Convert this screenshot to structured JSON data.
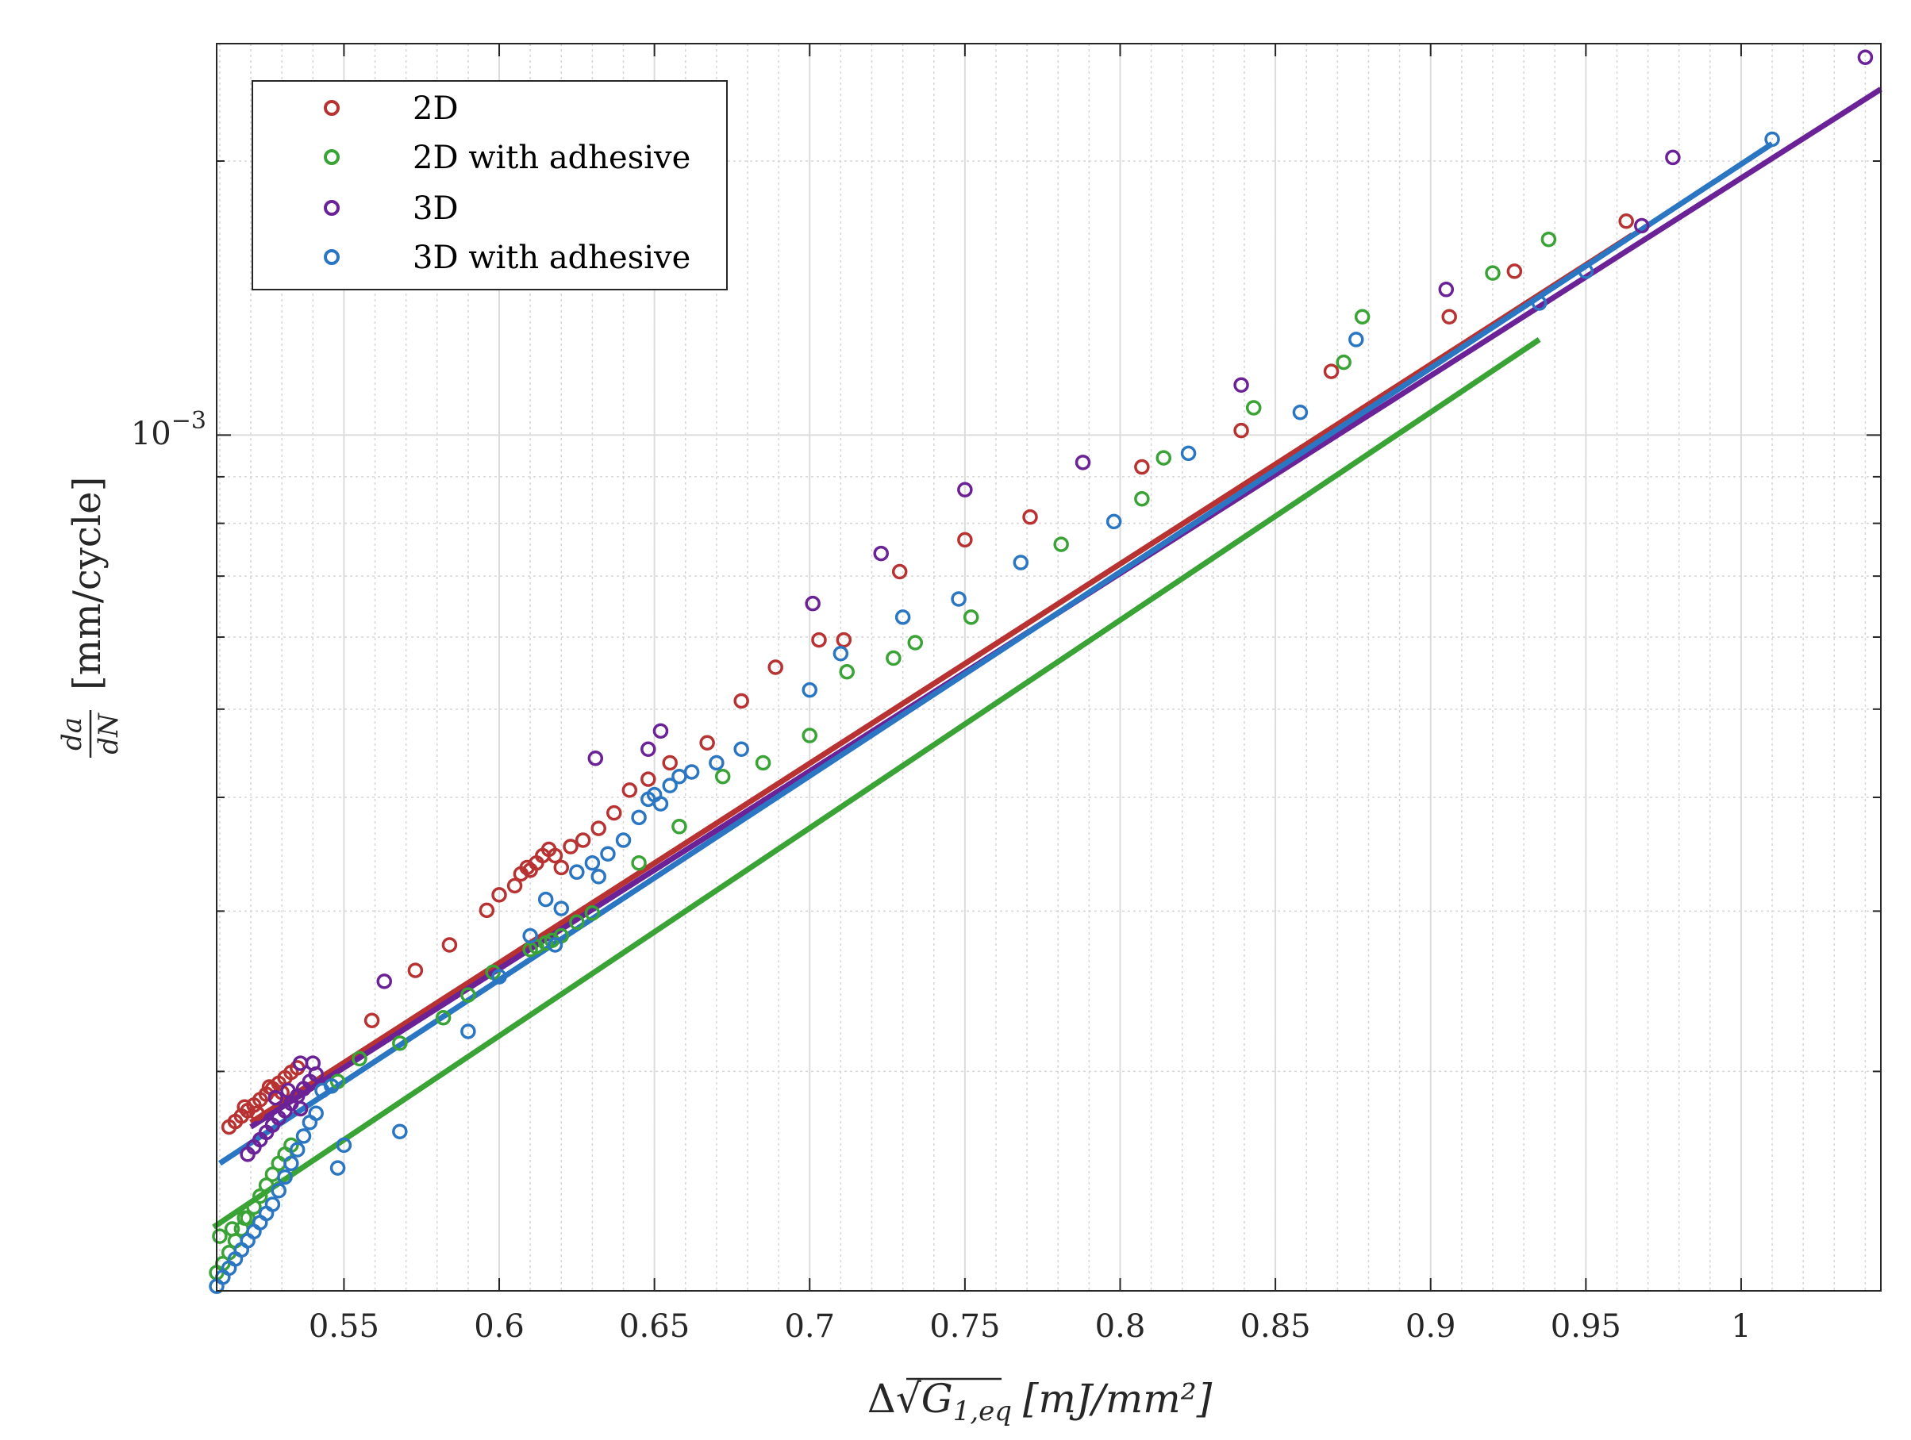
{
  "chart_data": {
    "type": "scatter",
    "title": "",
    "xlabel_parts": {
      "delta": "Δ",
      "sqrt": "√",
      "var": "G",
      "sub": "1,eq",
      "units": "[mJ/mm²]"
    },
    "ylabel_parts": {
      "num": "da",
      "den": "dN",
      "units": "[mm/cycle]"
    },
    "xlim": [
      0.509,
      1.045
    ],
    "ylim_log10": [
      -3.94,
      -2.57
    ],
    "x_ticks": [
      0.55,
      0.6,
      0.65,
      0.7,
      0.75,
      0.8,
      0.85,
      0.9,
      0.95,
      1.0
    ],
    "x_tick_labels": [
      "0.55",
      "0.6",
      "0.65",
      "0.7",
      "0.75",
      "0.8",
      "0.85",
      "0.9",
      "0.95",
      "1"
    ],
    "y_tick_label": {
      "base": "10",
      "exp": "−3"
    },
    "grid": "on (major and minor)",
    "legend_position": "top-left",
    "series": [
      {
        "name": "2D",
        "color": "#b83232",
        "fit_x": [
          0.52,
          0.965
        ],
        "fit_log10": [
          -3.755,
          -2.78
        ],
        "points": [
          [
            0.513,
            -3.76
          ],
          [
            0.515,
            -3.754
          ],
          [
            0.517,
            -3.748
          ],
          [
            0.519,
            -3.742
          ],
          [
            0.521,
            -3.736
          ],
          [
            0.523,
            -3.73
          ],
          [
            0.525,
            -3.724
          ],
          [
            0.527,
            -3.718
          ],
          [
            0.529,
            -3.712
          ],
          [
            0.531,
            -3.706
          ],
          [
            0.533,
            -3.7
          ],
          [
            0.535,
            -3.695
          ],
          [
            0.518,
            -3.738
          ],
          [
            0.522,
            -3.745
          ],
          [
            0.526,
            -3.716
          ],
          [
            0.53,
            -3.722
          ],
          [
            0.559,
            -3.643
          ],
          [
            0.573,
            -3.588
          ],
          [
            0.584,
            -3.56
          ],
          [
            0.596,
            -3.522
          ],
          [
            0.6,
            -3.505
          ],
          [
            0.605,
            -3.495
          ],
          [
            0.607,
            -3.482
          ],
          [
            0.609,
            -3.475
          ],
          [
            0.61,
            -3.478
          ],
          [
            0.612,
            -3.47
          ],
          [
            0.614,
            -3.462
          ],
          [
            0.616,
            -3.455
          ],
          [
            0.618,
            -3.462
          ],
          [
            0.62,
            -3.475
          ],
          [
            0.623,
            -3.452
          ],
          [
            0.627,
            -3.445
          ],
          [
            0.632,
            -3.432
          ],
          [
            0.637,
            -3.415
          ],
          [
            0.642,
            -3.39
          ],
          [
            0.648,
            -3.378
          ],
          [
            0.655,
            -3.36
          ],
          [
            0.667,
            -3.338
          ],
          [
            0.678,
            -3.292
          ],
          [
            0.689,
            -3.255
          ],
          [
            0.703,
            -3.225
          ],
          [
            0.711,
            -3.225
          ],
          [
            0.729,
            -3.15
          ],
          [
            0.75,
            -3.115
          ],
          [
            0.771,
            -3.09
          ],
          [
            0.807,
            -3.035
          ],
          [
            0.839,
            -2.995
          ],
          [
            0.868,
            -2.93
          ],
          [
            0.906,
            -2.87
          ],
          [
            0.927,
            -2.82
          ],
          [
            0.963,
            -2.765
          ]
        ]
      },
      {
        "name": "2D with adhesive",
        "color": "#3aa335",
        "fit_x": [
          0.508,
          0.935
        ],
        "fit_log10": [
          -3.87,
          -2.895
        ],
        "points": [
          [
            0.509,
            -3.92
          ],
          [
            0.511,
            -3.91
          ],
          [
            0.513,
            -3.898
          ],
          [
            0.515,
            -3.885
          ],
          [
            0.517,
            -3.872
          ],
          [
            0.519,
            -3.86
          ],
          [
            0.521,
            -3.848
          ],
          [
            0.523,
            -3.836
          ],
          [
            0.525,
            -3.824
          ],
          [
            0.527,
            -3.812
          ],
          [
            0.529,
            -3.8
          ],
          [
            0.531,
            -3.79
          ],
          [
            0.533,
            -3.78
          ],
          [
            0.51,
            -3.88
          ],
          [
            0.514,
            -3.872
          ],
          [
            0.518,
            -3.86
          ],
          [
            0.548,
            -3.71
          ],
          [
            0.555,
            -3.685
          ],
          [
            0.568,
            -3.668
          ],
          [
            0.582,
            -3.64
          ],
          [
            0.59,
            -3.615
          ],
          [
            0.598,
            -3.59
          ],
          [
            0.61,
            -3.565
          ],
          [
            0.612,
            -3.562
          ],
          [
            0.615,
            -3.558
          ],
          [
            0.617,
            -3.555
          ],
          [
            0.62,
            -3.55
          ],
          [
            0.625,
            -3.535
          ],
          [
            0.63,
            -3.525
          ],
          [
            0.645,
            -3.47
          ],
          [
            0.658,
            -3.43
          ],
          [
            0.672,
            -3.375
          ],
          [
            0.685,
            -3.36
          ],
          [
            0.7,
            -3.33
          ],
          [
            0.712,
            -3.26
          ],
          [
            0.727,
            -3.245
          ],
          [
            0.734,
            -3.228
          ],
          [
            0.752,
            -3.2
          ],
          [
            0.781,
            -3.12
          ],
          [
            0.807,
            -3.07
          ],
          [
            0.814,
            -3.025
          ],
          [
            0.843,
            -2.97
          ],
          [
            0.872,
            -2.92
          ],
          [
            0.878,
            -2.87
          ],
          [
            0.92,
            -2.822
          ],
          [
            0.938,
            -2.785
          ]
        ]
      },
      {
        "name": "3D",
        "color": "#6a2296",
        "fit_x": [
          0.52,
          1.045
        ],
        "fit_log10": [
          -3.76,
          -2.62
        ],
        "points": [
          [
            0.519,
            -3.79
          ],
          [
            0.521,
            -3.782
          ],
          [
            0.523,
            -3.774
          ],
          [
            0.525,
            -3.766
          ],
          [
            0.527,
            -3.758
          ],
          [
            0.529,
            -3.75
          ],
          [
            0.531,
            -3.742
          ],
          [
            0.533,
            -3.734
          ],
          [
            0.535,
            -3.726
          ],
          [
            0.537,
            -3.718
          ],
          [
            0.539,
            -3.71
          ],
          [
            0.541,
            -3.702
          ],
          [
            0.536,
            -3.74
          ],
          [
            0.532,
            -3.72
          ],
          [
            0.528,
            -3.728
          ],
          [
            0.54,
            -3.69
          ],
          [
            0.536,
            -3.69
          ],
          [
            0.563,
            -3.6
          ],
          [
            0.631,
            -3.355
          ],
          [
            0.648,
            -3.345
          ],
          [
            0.652,
            -3.325
          ],
          [
            0.701,
            -3.185
          ],
          [
            0.723,
            -3.13
          ],
          [
            0.75,
            -3.06
          ],
          [
            0.788,
            -3.03
          ],
          [
            0.839,
            -2.945
          ],
          [
            0.905,
            -2.84
          ],
          [
            0.968,
            -2.77
          ],
          [
            0.978,
            -2.695
          ],
          [
            1.04,
            -2.585
          ]
        ]
      },
      {
        "name": "3D with adhesive",
        "color": "#2b76c3",
        "fit_x": [
          0.51,
          1.01
        ],
        "fit_log10": [
          -3.8,
          -2.68
        ],
        "points": [
          [
            0.509,
            -3.935
          ],
          [
            0.511,
            -3.925
          ],
          [
            0.513,
            -3.915
          ],
          [
            0.515,
            -3.905
          ],
          [
            0.517,
            -3.895
          ],
          [
            0.519,
            -3.885
          ],
          [
            0.521,
            -3.875
          ],
          [
            0.523,
            -3.865
          ],
          [
            0.525,
            -3.855
          ],
          [
            0.527,
            -3.845
          ],
          [
            0.529,
            -3.83
          ],
          [
            0.531,
            -3.815
          ],
          [
            0.533,
            -3.8
          ],
          [
            0.535,
            -3.785
          ],
          [
            0.537,
            -3.77
          ],
          [
            0.539,
            -3.755
          ],
          [
            0.541,
            -3.745
          ],
          [
            0.543,
            -3.72
          ],
          [
            0.546,
            -3.715
          ],
          [
            0.548,
            -3.805
          ],
          [
            0.55,
            -3.78
          ],
          [
            0.568,
            -3.765
          ],
          [
            0.59,
            -3.655
          ],
          [
            0.6,
            -3.595
          ],
          [
            0.61,
            -3.55
          ],
          [
            0.615,
            -3.51
          ],
          [
            0.618,
            -3.56
          ],
          [
            0.62,
            -3.52
          ],
          [
            0.625,
            -3.48
          ],
          [
            0.63,
            -3.47
          ],
          [
            0.632,
            -3.485
          ],
          [
            0.635,
            -3.46
          ],
          [
            0.64,
            -3.445
          ],
          [
            0.645,
            -3.42
          ],
          [
            0.648,
            -3.4
          ],
          [
            0.65,
            -3.395
          ],
          [
            0.652,
            -3.405
          ],
          [
            0.655,
            -3.385
          ],
          [
            0.658,
            -3.375
          ],
          [
            0.662,
            -3.37
          ],
          [
            0.67,
            -3.36
          ],
          [
            0.678,
            -3.345
          ],
          [
            0.7,
            -3.28
          ],
          [
            0.71,
            -3.24
          ],
          [
            0.73,
            -3.2
          ],
          [
            0.748,
            -3.18
          ],
          [
            0.768,
            -3.14
          ],
          [
            0.798,
            -3.095
          ],
          [
            0.822,
            -3.02
          ],
          [
            0.858,
            -2.975
          ],
          [
            0.876,
            -2.895
          ],
          [
            0.935,
            -2.855
          ],
          [
            0.95,
            -2.82
          ],
          [
            1.01,
            -2.675
          ]
        ]
      }
    ]
  }
}
